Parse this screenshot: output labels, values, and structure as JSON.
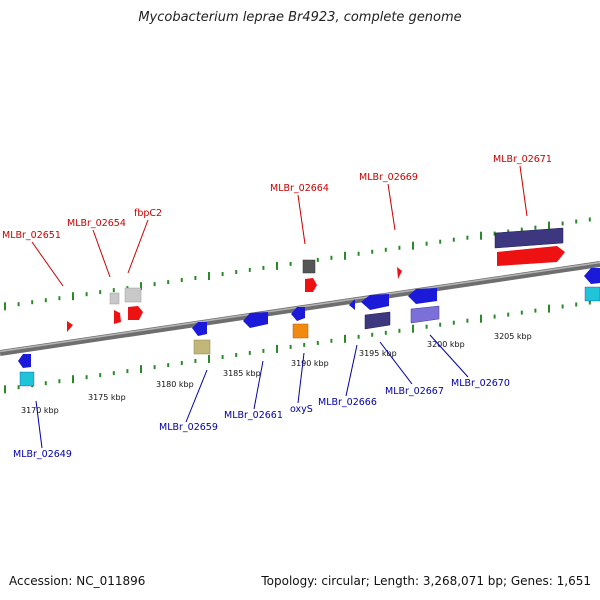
{
  "title": "Mycobacterium leprae Br4923, complete genome",
  "footer": {
    "accession": "Accession: NC_011896",
    "stats": "Topology: circular; Length: 3,268,071 bp; Genes: 1,651"
  },
  "colors": {
    "forward_label": "#cc0000",
    "reverse_label": "#0000aa",
    "tick_mark": "#2a8a2a",
    "backbone": "#888888"
  },
  "scale_labels": [
    "3170 kbp",
    "3175 kbp",
    "3180 kbp",
    "3185 kbp",
    "3190 kbp",
    "3195 kbp",
    "3200 kbp",
    "3205 kbp"
  ],
  "forward_genes": [
    "MLBr_02651",
    "MLBr_02654",
    "fbpC2",
    "MLBr_02664",
    "MLBr_02669",
    "MLBr_02671"
  ],
  "reverse_genes": [
    "MLBr_02649",
    "MLBr_02659",
    "MLBr_02661",
    "oxyS",
    "MLBr_02666",
    "MLBr_02667",
    "MLBr_02670"
  ]
}
